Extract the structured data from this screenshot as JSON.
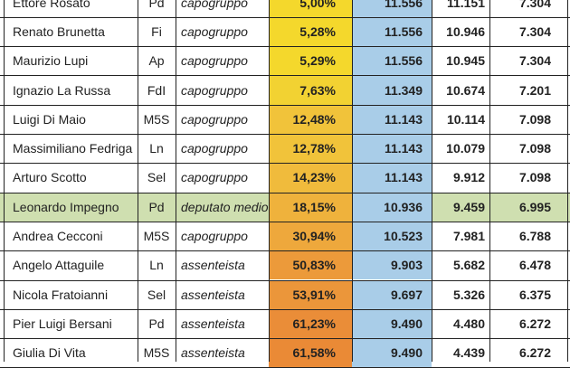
{
  "rows": [
    {
      "name": "Ettore Rosato",
      "party": "Pd",
      "role": "capogruppo",
      "pct": "5,00%",
      "n1": "11.556",
      "n2": "11.151",
      "n3": "7.304",
      "color": "#f4d82c"
    },
    {
      "name": "Renato Brunetta",
      "party": "Fi",
      "role": "capogruppo",
      "pct": "5,28%",
      "n1": "11.556",
      "n2": "10.946",
      "n3": "7.304",
      "color": "#f4d82c"
    },
    {
      "name": "Maurizio Lupi",
      "party": "Ap",
      "role": "capogruppo",
      "pct": "5,29%",
      "n1": "11.556",
      "n2": "10.945",
      "n3": "7.304",
      "color": "#f4d82c"
    },
    {
      "name": "Ignazio La Russa",
      "party": "FdI",
      "role": "capogruppo",
      "pct": "7,63%",
      "n1": "11.349",
      "n2": "10.674",
      "n3": "7.201",
      "color": "#f2d232"
    },
    {
      "name": "Luigi Di Maio",
      "party": "M5S",
      "role": "capogruppo",
      "pct": "12,48%",
      "n1": "11.143",
      "n2": "10.114",
      "n3": "7.098",
      "color": "#f1c33a"
    },
    {
      "name": "Massimiliano Fedriga",
      "party": "Ln",
      "role": "capogruppo",
      "pct": "12,78%",
      "n1": "11.143",
      "n2": "10.079",
      "n3": "7.098",
      "color": "#f1c33a"
    },
    {
      "name": "Arturo Scotto",
      "party": "Sel",
      "role": "capogruppo",
      "pct": "14,23%",
      "n1": "11.143",
      "n2": "9.912",
      "n3": "7.098",
      "color": "#f0bb3c"
    },
    {
      "name": "Leonardo Impegno",
      "party": "Pd",
      "role": "deputato medio",
      "pct": "18,15%",
      "n1": "10.936",
      "n2": "9.459",
      "n3": "6.995",
      "color": "#efb23c",
      "highlight": true
    },
    {
      "name": "Andrea Cecconi",
      "party": "M5S",
      "role": "capogruppo",
      "pct": "30,94%",
      "n1": "10.523",
      "n2": "7.981",
      "n3": "6.788",
      "color": "#eea83c"
    },
    {
      "name": "Angelo Attaguile",
      "party": "Ln",
      "role": "assenteista",
      "pct": "50,83%",
      "n1": "9.903",
      "n2": "5.682",
      "n3": "6.478",
      "color": "#ec9a3a"
    },
    {
      "name": "Nicola Fratoianni",
      "party": "Sel",
      "role": "assenteista",
      "pct": "53,91%",
      "n1": "9.697",
      "n2": "5.326",
      "n3": "6.375",
      "color": "#eb963a"
    },
    {
      "name": "Pier Luigi Bersani",
      "party": "Pd",
      "role": "assenteista",
      "pct": "61,23%",
      "n1": "9.490",
      "n2": "4.480",
      "n3": "6.272",
      "color": "#ea8d38"
    },
    {
      "name": "Giulia Di Vita",
      "party": "M5S",
      "role": "assenteista",
      "pct": "61,58%",
      "n1": "9.490",
      "n2": "4.439",
      "n3": "6.272",
      "color": "#ea8a36"
    }
  ]
}
